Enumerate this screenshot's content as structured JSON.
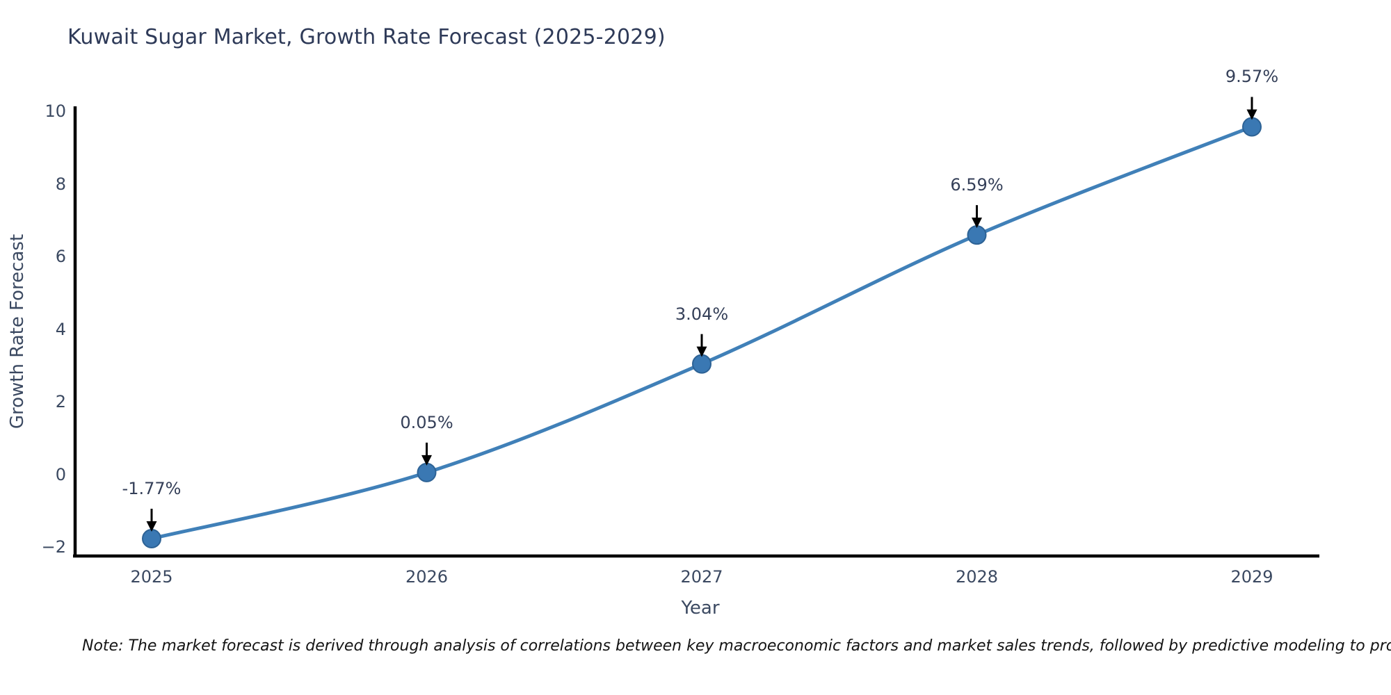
{
  "title": "Kuwait Sugar Market, Growth Rate Forecast (2025-2029)",
  "note": "Note: The market forecast is derived through analysis of correlations between key macroeconomic factors and market sales trends, followed by predictive modeling to project future sales",
  "chart_data": {
    "type": "line",
    "title": "Kuwait Sugar Market, Growth Rate Forecast (2025-2029)",
    "xlabel": "Year",
    "ylabel": "Growth Rate Forecast",
    "x": [
      2025,
      2026,
      2027,
      2028,
      2029
    ],
    "values": [
      -1.77,
      0.05,
      3.04,
      6.59,
      9.57
    ],
    "point_labels": [
      "-1.77%",
      "0.05%",
      "3.04%",
      "6.59%",
      "9.57%"
    ],
    "xticks": [
      "2025",
      "2026",
      "2027",
      "2028",
      "2029"
    ],
    "yticks": [
      10,
      8,
      6,
      4,
      2,
      0,
      -2
    ],
    "xlim": [
      2024.73,
      2029.25
    ],
    "ylim": [
      -2.25,
      10.05
    ],
    "grid": false,
    "legend": false,
    "colors": {
      "line": "#4080b8",
      "marker_fill": "#3a78b3",
      "marker_edge": "#2d6295",
      "axis_spine": "#000000",
      "annotation_arrow": "#000000",
      "title_text": "#2e3a58",
      "tick_text": "#3b4961",
      "note_text": "#141414"
    }
  }
}
